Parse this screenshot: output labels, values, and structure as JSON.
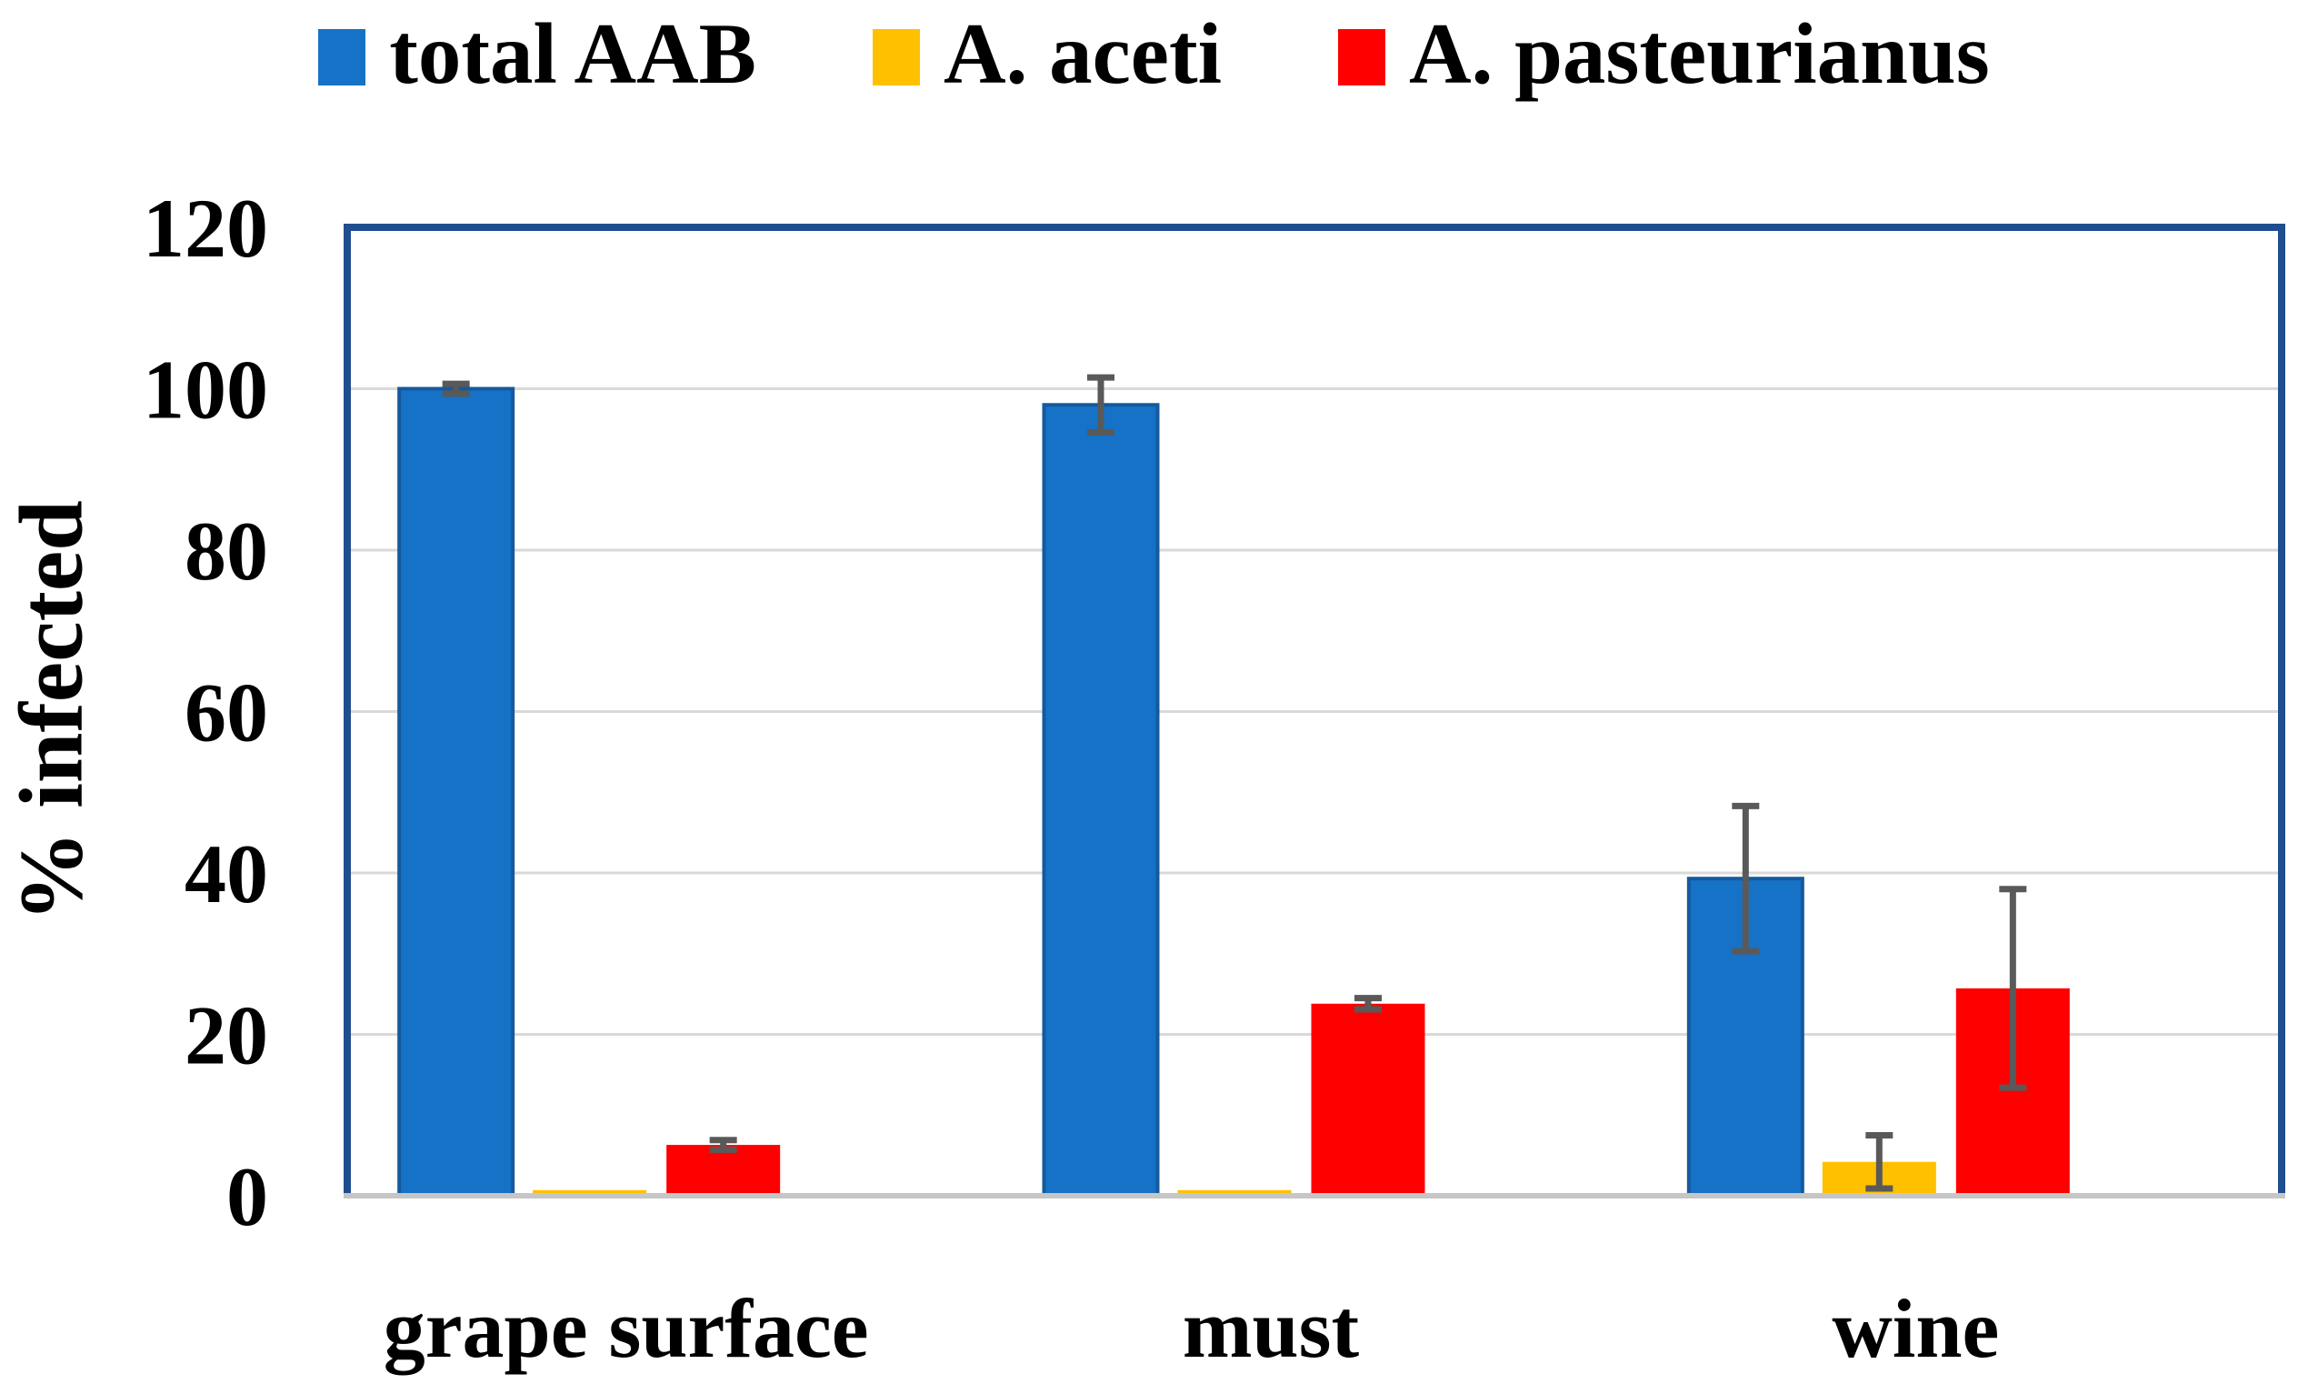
{
  "chart_data": {
    "type": "bar",
    "title": "",
    "categories": [
      "grape surface",
      "must",
      "wine"
    ],
    "series": [
      {
        "name": "total AAB",
        "color": "#1572C6",
        "border": "#15599E",
        "values": [
          100,
          98,
          39.3
        ],
        "error": [
          0.6,
          3.4,
          9.0
        ]
      },
      {
        "name": "A. aceti",
        "color": "#FFC000",
        "border": null,
        "values": [
          0.7,
          0.7,
          4.2
        ],
        "error": [
          null,
          null,
          3.3
        ]
      },
      {
        "name": "A. pasteurianus",
        "color": "#FF0000",
        "border": null,
        "values": [
          6.3,
          23.8,
          25.7
        ],
        "error": [
          0.6,
          0.7,
          12.3
        ]
      }
    ],
    "xlabel": "",
    "ylabel": "% infected",
    "ylim": [
      0,
      120
    ],
    "yticks": [
      0,
      20,
      40,
      60,
      80,
      100,
      120
    ],
    "grid": true,
    "legend_position": "top"
  },
  "colors": {
    "background": "#FFFFFF",
    "plot_border": "#1F4E8F",
    "gridline": "#D9D9D9",
    "baseline": "#C6C6C6",
    "error_bar": "#595959",
    "text": "#000000"
  }
}
